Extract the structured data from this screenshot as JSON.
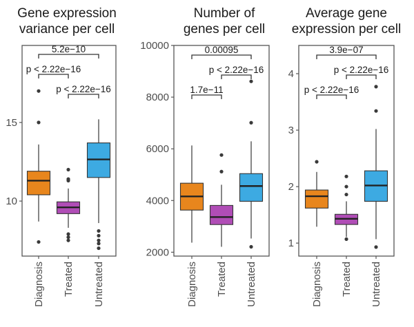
{
  "chart_data": [
    {
      "type": "box",
      "title": [
        "Gene expression",
        "variance per cell"
      ],
      "xlabel": "",
      "ylabel": "",
      "ylim": [
        6.5,
        19.9
      ],
      "yticks": [
        10,
        15
      ],
      "ytick_labels": [
        "10",
        "15"
      ],
      "grid": false,
      "categories": [
        "Diagnosis",
        "Treated",
        "Untreated"
      ],
      "boxes": [
        {
          "category": "Diagnosis",
          "whisker_low": 8.7,
          "q1": 10.4,
          "median": 11.3,
          "q3": 11.9,
          "whisker_high": 13.6,
          "outliers": [
            17.0,
            15.0,
            7.4
          ]
        },
        {
          "category": "Treated",
          "whisker_low": 8.3,
          "q1": 9.2,
          "median": 9.6,
          "q3": 9.95,
          "whisker_high": 10.8,
          "outliers": [
            12.0,
            11.4,
            11.3,
            7.9,
            7.7,
            7.5
          ]
        },
        {
          "category": "Untreated",
          "whisker_low": 8.6,
          "q1": 11.5,
          "median": 12.65,
          "q3": 13.7,
          "whisker_high": 15.2,
          "outliers": [
            8.1,
            7.8,
            7.5,
            7.3,
            7.0
          ]
        }
      ],
      "comparisons": [
        {
          "from": "Diagnosis",
          "to": "Untreated",
          "label": "5.2e−10",
          "level": 2
        },
        {
          "from": "Diagnosis",
          "to": "Treated",
          "label": "p < 2.22e−16",
          "level": 1
        },
        {
          "from": "Treated",
          "to": "Untreated",
          "label": "p < 2.22e−16",
          "level": 0
        }
      ]
    },
    {
      "type": "box",
      "title": [
        "Number of",
        "genes per cell"
      ],
      "xlabel": "",
      "ylabel": "",
      "ylim": [
        1850,
        10000
      ],
      "yticks": [
        2000,
        4000,
        6000,
        8000,
        10000
      ],
      "ytick_labels": [
        "2000",
        "4000",
        "6000",
        "8000",
        "10000"
      ],
      "grid": false,
      "categories": [
        "Diagnosis",
        "Treated",
        "Untreated"
      ],
      "boxes": [
        {
          "category": "Diagnosis",
          "whisker_low": 2370,
          "q1": 3630,
          "median": 4160,
          "q3": 4670,
          "whisker_high": 6130,
          "outliers": []
        },
        {
          "category": "Treated",
          "whisker_low": 2210,
          "q1": 3070,
          "median": 3360,
          "q3": 3810,
          "whisker_high": 4610,
          "outliers": [
            5760,
            5120
          ]
        },
        {
          "category": "Untreated",
          "whisker_low": 2530,
          "q1": 3970,
          "median": 4560,
          "q3": 5040,
          "whisker_high": 6290,
          "outliers": [
            8610,
            7010,
            2210
          ]
        }
      ],
      "comparisons": [
        {
          "from": "Diagnosis",
          "to": "Untreated",
          "label": "0.00095",
          "level": 2
        },
        {
          "from": "Treated",
          "to": "Untreated",
          "label": "p < 2.22e−16",
          "level": 1
        },
        {
          "from": "Diagnosis",
          "to": "Treated",
          "label": "1.7e−11",
          "level": 0
        }
      ]
    },
    {
      "type": "box",
      "title": [
        "Average gene",
        "expression per cell"
      ],
      "xlabel": "",
      "ylabel": "",
      "ylim": [
        0.77,
        4.5
      ],
      "yticks": [
        1,
        2,
        3,
        4
      ],
      "ytick_labels": [
        "1",
        "2",
        "3",
        "4"
      ],
      "grid": false,
      "categories": [
        "Diagnosis",
        "Treated",
        "Untreated"
      ],
      "boxes": [
        {
          "category": "Diagnosis",
          "whisker_low": 1.29,
          "q1": 1.62,
          "median": 1.83,
          "q3": 1.94,
          "whisker_high": 2.26,
          "outliers": [
            2.44
          ]
        },
        {
          "category": "Treated",
          "whisker_low": 1.11,
          "q1": 1.33,
          "median": 1.43,
          "q3": 1.51,
          "whisker_high": 1.74,
          "outliers": [
            2.18,
            2.0,
            1.86,
            1.07
          ]
        },
        {
          "category": "Untreated",
          "whisker_low": 1.07,
          "q1": 1.74,
          "median": 2.02,
          "q3": 2.28,
          "whisker_high": 3.02,
          "outliers": [
            3.77,
            3.34,
            0.93
          ]
        }
      ],
      "comparisons": [
        {
          "from": "Diagnosis",
          "to": "Untreated",
          "label": "3.9e−07",
          "level": 2
        },
        {
          "from": "Treated",
          "to": "Untreated",
          "label": "p < 2.22e−16",
          "level": 1
        },
        {
          "from": "Diagnosis",
          "to": "Treated",
          "label": "p < 2.22e−16",
          "level": 0
        }
      ]
    }
  ],
  "colors": {
    "Diagnosis": "#E8861D",
    "Treated": "#B04DB6",
    "Untreated": "#3DAAE2",
    "outline": "#333333",
    "axis": "#555555",
    "outlier": "#3a3a3a"
  }
}
